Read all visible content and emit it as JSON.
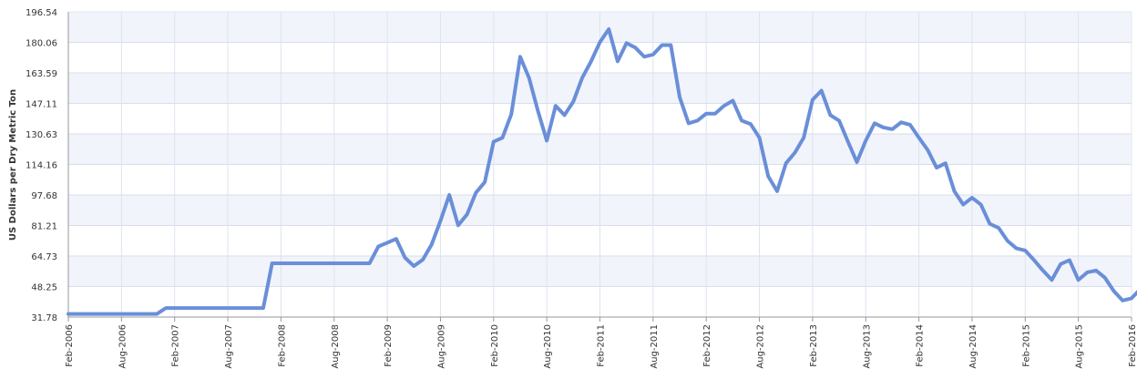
{
  "chart_data": {
    "type": "line",
    "title": "",
    "xlabel": "",
    "ylabel": "US Dollars per Dry Metric Ton",
    "ylim": [
      31.78,
      196.54
    ],
    "yticks": [
      "31.78",
      "48.25",
      "64.73",
      "81.21",
      "97.68",
      "114.16",
      "130.63",
      "147.11",
      "163.59",
      "180.06",
      "196.54"
    ],
    "xlim": [
      "2006-02",
      "2016-02"
    ],
    "xticks": [
      {
        "date": "2006-02",
        "label": "Feb-2006"
      },
      {
        "date": "2006-08",
        "label": "Aug-2006"
      },
      {
        "date": "2007-02",
        "label": "Feb-2007"
      },
      {
        "date": "2007-08",
        "label": "Aug-2007"
      },
      {
        "date": "2008-02",
        "label": "Feb-2008"
      },
      {
        "date": "2008-08",
        "label": "Aug-2008"
      },
      {
        "date": "2009-02",
        "label": "Feb-2009"
      },
      {
        "date": "2009-08",
        "label": "Aug-2009"
      },
      {
        "date": "2010-02",
        "label": "Feb-2010"
      },
      {
        "date": "2010-08",
        "label": "Aug-2010"
      },
      {
        "date": "2011-02",
        "label": "Feb-2011"
      },
      {
        "date": "2011-08",
        "label": "Aug-2011"
      },
      {
        "date": "2012-02",
        "label": "Feb-2012"
      },
      {
        "date": "2012-08",
        "label": "Aug-2012"
      },
      {
        "date": "2013-02",
        "label": "Feb-2013"
      },
      {
        "date": "2013-08",
        "label": "Aug-2013"
      },
      {
        "date": "2014-02",
        "label": "Feb-2014"
      },
      {
        "date": "2014-08",
        "label": "Aug-2014"
      },
      {
        "date": "2015-02",
        "label": "Feb-2015"
      },
      {
        "date": "2015-08",
        "label": "Aug-2015"
      },
      {
        "date": "2016-02",
        "label": "Feb-2016"
      }
    ],
    "grid": true,
    "line_color": "#6a8fd8",
    "band_color": "#f2f4fb",
    "series": [
      {
        "values": [
          [
            "2006-02",
            33.45
          ],
          [
            "2006-03",
            33.45
          ],
          [
            "2006-04",
            33.45
          ],
          [
            "2006-05",
            33.45
          ],
          [
            "2006-06",
            33.45
          ],
          [
            "2006-07",
            33.45
          ],
          [
            "2006-08",
            33.45
          ],
          [
            "2006-09",
            33.45
          ],
          [
            "2006-10",
            33.45
          ],
          [
            "2006-11",
            33.45
          ],
          [
            "2006-12",
            33.45
          ],
          [
            "2007-01",
            36.63
          ],
          [
            "2007-02",
            36.63
          ],
          [
            "2007-03",
            36.63
          ],
          [
            "2007-04",
            36.63
          ],
          [
            "2007-05",
            36.63
          ],
          [
            "2007-06",
            36.63
          ],
          [
            "2007-07",
            36.63
          ],
          [
            "2007-08",
            36.63
          ],
          [
            "2007-09",
            36.63
          ],
          [
            "2007-10",
            36.63
          ],
          [
            "2007-11",
            36.63
          ],
          [
            "2007-12",
            36.63
          ],
          [
            "2008-01",
            60.8
          ],
          [
            "2008-02",
            60.8
          ],
          [
            "2008-03",
            60.8
          ],
          [
            "2008-04",
            60.8
          ],
          [
            "2008-05",
            60.8
          ],
          [
            "2008-06",
            60.8
          ],
          [
            "2008-07",
            60.8
          ],
          [
            "2008-08",
            60.8
          ],
          [
            "2008-09",
            60.8
          ],
          [
            "2008-10",
            60.8
          ],
          [
            "2008-11",
            60.8
          ],
          [
            "2008-12",
            60.8
          ],
          [
            "2009-01",
            69.9
          ],
          [
            "2009-02",
            71.9
          ],
          [
            "2009-03",
            74.0
          ],
          [
            "2009-04",
            63.8
          ],
          [
            "2009-05",
            59.3
          ],
          [
            "2009-06",
            62.7
          ],
          [
            "2009-07",
            70.9
          ],
          [
            "2009-08",
            83.7
          ],
          [
            "2009-09",
            97.7
          ],
          [
            "2009-10",
            81.3
          ],
          [
            "2009-11",
            87.2
          ],
          [
            "2009-12",
            98.9
          ],
          [
            "2010-01",
            104.6
          ],
          [
            "2010-02",
            126.4
          ],
          [
            "2010-03",
            128.6
          ],
          [
            "2010-04",
            141.3
          ],
          [
            "2010-05",
            172.3
          ],
          [
            "2010-06",
            160.9
          ],
          [
            "2010-07",
            143.1
          ],
          [
            "2010-08",
            127.0
          ],
          [
            "2010-09",
            145.8
          ],
          [
            "2010-10",
            140.8
          ],
          [
            "2010-11",
            148.1
          ],
          [
            "2010-12",
            160.9
          ],
          [
            "2011-01",
            169.8
          ],
          [
            "2011-02",
            180.2
          ],
          [
            "2011-03",
            187.2
          ],
          [
            "2011-04",
            169.8
          ],
          [
            "2011-05",
            179.7
          ],
          [
            "2011-06",
            177.2
          ],
          [
            "2011-07",
            172.3
          ],
          [
            "2011-08",
            173.5
          ],
          [
            "2011-09",
            178.6
          ],
          [
            "2011-10",
            178.6
          ],
          [
            "2011-11",
            150.5
          ],
          [
            "2011-12",
            136.4
          ],
          [
            "2012-01",
            137.8
          ],
          [
            "2012-02",
            141.6
          ],
          [
            "2012-03",
            141.6
          ],
          [
            "2012-04",
            145.8
          ],
          [
            "2012-05",
            148.6
          ],
          [
            "2012-06",
            137.8
          ],
          [
            "2012-07",
            136.0
          ],
          [
            "2012-08",
            128.6
          ],
          [
            "2012-09",
            107.7
          ],
          [
            "2012-10",
            99.7
          ],
          [
            "2012-11",
            114.8
          ],
          [
            "2012-12",
            120.5
          ],
          [
            "2013-01",
            128.6
          ],
          [
            "2013-02",
            149.1
          ],
          [
            "2013-03",
            154.0
          ],
          [
            "2013-04",
            140.8
          ],
          [
            "2013-05",
            137.8
          ],
          [
            "2013-06",
            126.4
          ],
          [
            "2013-07",
            115.4
          ],
          [
            "2013-08",
            127.0
          ],
          [
            "2013-09",
            136.4
          ],
          [
            "2013-10",
            134.1
          ],
          [
            "2013-11",
            133.2
          ],
          [
            "2013-12",
            136.9
          ],
          [
            "2014-01",
            135.6
          ],
          [
            "2014-02",
            128.6
          ],
          [
            "2014-03",
            121.9
          ],
          [
            "2014-04",
            112.4
          ],
          [
            "2014-05",
            114.8
          ],
          [
            "2014-06",
            99.7
          ],
          [
            "2014-07",
            92.5
          ],
          [
            "2014-08",
            96.2
          ],
          [
            "2014-09",
            92.5
          ],
          [
            "2014-10",
            82.1
          ],
          [
            "2014-11",
            79.9
          ],
          [
            "2014-12",
            72.9
          ],
          [
            "2015-01",
            68.9
          ],
          [
            "2015-02",
            67.7
          ],
          [
            "2015-03",
            62.5
          ],
          [
            "2015-04",
            56.9
          ],
          [
            "2015-05",
            51.8
          ],
          [
            "2015-06",
            60.4
          ],
          [
            "2015-07",
            62.5
          ],
          [
            "2015-08",
            51.8
          ],
          [
            "2015-09",
            55.9
          ],
          [
            "2015-10",
            56.9
          ],
          [
            "2015-11",
            53.0
          ],
          [
            "2015-12",
            45.8
          ],
          [
            "2016-01",
            40.7
          ],
          [
            "2016-02",
            41.9
          ],
          [
            "2016-03",
            46.9
          ]
        ]
      }
    ]
  }
}
